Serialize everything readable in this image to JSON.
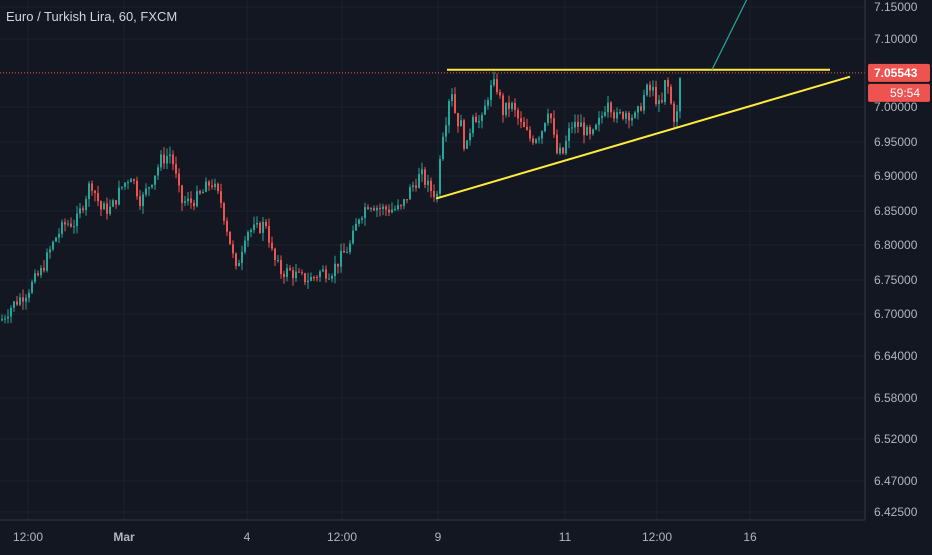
{
  "header": {
    "title": "Euro / Turkish Lira, 60, FXCM"
  },
  "colors": {
    "background": "#131722",
    "up": "#26a69a",
    "down": "#ef5350",
    "trendline": "#ffeb3b",
    "projection": "#26a69a",
    "price_label": "#ef5350",
    "axis_text": "#b2b5be",
    "grid": "#1e222d"
  },
  "chart_data": {
    "type": "candlestick",
    "symbol": "EUR/TRY",
    "timeframe": "60",
    "source": "FXCM",
    "y_range": [
      6.41,
      7.165
    ],
    "y_ticks": [
      "7.15000",
      "7.10000",
      "7.00000",
      "6.95000",
      "6.90000",
      "6.85000",
      "6.80000",
      "6.75000",
      "6.70000",
      "6.64000",
      "6.58000",
      "6.52000",
      "6.47000",
      "6.42500"
    ],
    "x_ticks": [
      "12:00",
      "Mar",
      "4",
      "12:00",
      "9",
      "11",
      "12:00",
      "16"
    ],
    "current_price": "7.05543",
    "countdown": "59:54",
    "price_path": [
      [
        0,
        6.7
      ],
      [
        10,
        6.72
      ],
      [
        25,
        6.74
      ],
      [
        40,
        6.77
      ],
      [
        55,
        6.82
      ],
      [
        65,
        6.84
      ],
      [
        75,
        6.84
      ],
      [
        90,
        6.9
      ],
      [
        100,
        6.86
      ],
      [
        110,
        6.86
      ],
      [
        120,
        6.89
      ],
      [
        130,
        6.91
      ],
      [
        140,
        6.87
      ],
      [
        150,
        6.9
      ],
      [
        160,
        6.93
      ],
      [
        170,
        6.94
      ],
      [
        180,
        6.87
      ],
      [
        190,
        6.87
      ],
      [
        200,
        6.88
      ],
      [
        210,
        6.9
      ],
      [
        220,
        6.87
      ],
      [
        228,
        6.82
      ],
      [
        235,
        6.77
      ],
      [
        245,
        6.83
      ],
      [
        255,
        6.83
      ],
      [
        265,
        6.84
      ],
      [
        272,
        6.79
      ],
      [
        280,
        6.77
      ],
      [
        290,
        6.77
      ],
      [
        300,
        6.76
      ],
      [
        310,
        6.76
      ],
      [
        320,
        6.77
      ],
      [
        330,
        6.77
      ],
      [
        340,
        6.79
      ],
      [
        350,
        6.81
      ],
      [
        358,
        6.85
      ],
      [
        368,
        6.87
      ],
      [
        380,
        6.86
      ],
      [
        390,
        6.86
      ],
      [
        400,
        6.86
      ],
      [
        410,
        6.89
      ],
      [
        420,
        6.91
      ],
      [
        428,
        6.89
      ],
      [
        436,
        6.88
      ],
      [
        440,
        6.96
      ],
      [
        445,
        6.99
      ],
      [
        450,
        7.04
      ],
      [
        455,
        6.99
      ],
      [
        460,
        6.98
      ],
      [
        465,
        6.94
      ],
      [
        472,
        7.0
      ],
      [
        480,
        6.98
      ],
      [
        488,
        7.03
      ],
      [
        495,
        7.04
      ],
      [
        502,
        7.0
      ],
      [
        510,
        7.01
      ],
      [
        520,
        6.98
      ],
      [
        530,
        6.96
      ],
      [
        540,
        6.97
      ],
      [
        548,
        7.01
      ],
      [
        555,
        6.94
      ],
      [
        562,
        6.94
      ],
      [
        570,
        6.98
      ],
      [
        580,
        6.98
      ],
      [
        590,
        6.96
      ],
      [
        600,
        6.99
      ],
      [
        607,
        7.02
      ],
      [
        615,
        6.99
      ],
      [
        625,
        7.0
      ],
      [
        635,
        6.99
      ],
      [
        645,
        7.03
      ],
      [
        652,
        7.03
      ],
      [
        660,
        7.0
      ],
      [
        665,
        7.05
      ],
      [
        670,
        7.01
      ],
      [
        675,
        6.98
      ],
      [
        680,
        7.06
      ]
    ],
    "trendlines": [
      {
        "name": "resistance",
        "from": [
          447,
          7.06
        ],
        "to": [
          830,
          7.06
        ]
      },
      {
        "name": "support",
        "from": [
          436,
          6.875
        ],
        "to": [
          850,
          7.05
        ]
      },
      {
        "name": "projection",
        "from": [
          712,
          7.06
        ],
        "to": [
          750,
          7.17
        ]
      }
    ],
    "candle_step": 3,
    "seed": 7
  }
}
